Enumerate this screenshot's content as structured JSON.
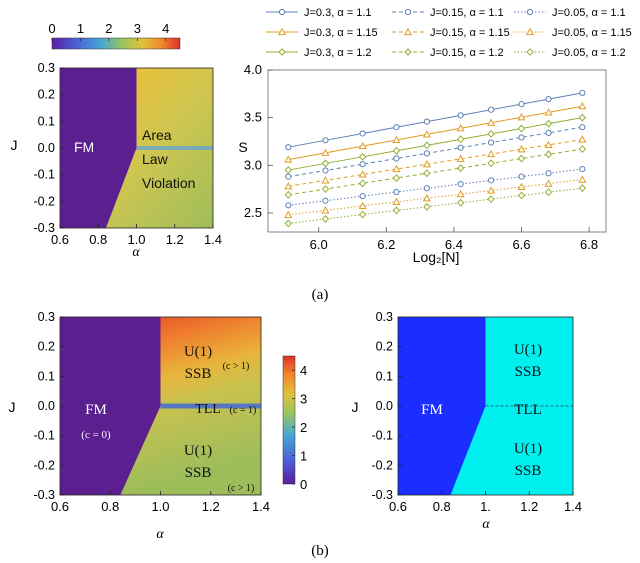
{
  "figure": {
    "label_a": "(a)",
    "label_b": "(b)"
  },
  "chart_data": [
    {
      "id": "a-left",
      "type": "heatmap",
      "title": "",
      "xlabel": "α",
      "ylabel": "J",
      "xlim": [
        0.6,
        1.4
      ],
      "ylim": [
        -0.3,
        0.3
      ],
      "xticks": [
        "0.6",
        "0.8",
        "1.0",
        "1.2",
        "1.4"
      ],
      "yticks": [
        "0.3",
        "0.2",
        "0.1",
        "0.0",
        "-0.1",
        "-0.2",
        "-0.3"
      ],
      "colorbar": {
        "min": 0,
        "max": 4.5,
        "ticks": [
          "0",
          "1",
          "2",
          "3",
          "4"
        ],
        "orientation": "horizontal"
      },
      "regions": [
        {
          "label": "FM",
          "value": 0
        },
        {
          "label": "Area",
          "value": 3.5
        },
        {
          "label": "Law",
          "value": 3.5
        },
        {
          "label": "Violation",
          "value": 3.5
        }
      ],
      "boundary": {
        "alpha_at_J_min": 0.84,
        "alpha_at_J_zero": 1.0
      }
    },
    {
      "id": "a-right",
      "type": "line",
      "xlabel": "Log₂[N]",
      "ylabel": "S",
      "xlim": [
        5.85,
        6.85
      ],
      "ylim": [
        2.3,
        4.0
      ],
      "xticks": [
        "6.0",
        "6.2",
        "6.4",
        "6.6",
        "6.8"
      ],
      "yticks": [
        "4.0",
        "3.5",
        "3.0",
        "2.5"
      ],
      "x": [
        5.91,
        6.02,
        6.13,
        6.23,
        6.32,
        6.42,
        6.51,
        6.6,
        6.68,
        6.78
      ],
      "series": [
        {
          "name": "J=0.3, α = 1.1",
          "color": "#5e81b5",
          "marker": "circle",
          "dash": "solid",
          "start": 3.19,
          "end": 3.76
        },
        {
          "name": "J=0.3, α = 1.15",
          "color": "#e19c24",
          "marker": "triangle",
          "dash": "solid",
          "start": 3.06,
          "end": 3.62
        },
        {
          "name": "J=0.3, α = 1.2",
          "color": "#8fb032",
          "marker": "diamond",
          "dash": "solid",
          "start": 2.95,
          "end": 3.5
        },
        {
          "name": "J=0.15, α = 1.1",
          "color": "#5e81b5",
          "marker": "circle",
          "dash": "dashed",
          "start": 2.88,
          "end": 3.4
        },
        {
          "name": "J=0.15, α = 1.15",
          "color": "#e19c24",
          "marker": "triangle",
          "dash": "dashed",
          "start": 2.78,
          "end": 3.27
        },
        {
          "name": "J=0.15, α = 1.2",
          "color": "#8fb032",
          "marker": "diamond",
          "dash": "dashed",
          "start": 2.69,
          "end": 3.17
        },
        {
          "name": "J=0.05, α = 1.1",
          "color": "#5e81b5",
          "marker": "circle",
          "dash": "dotted",
          "start": 2.58,
          "end": 2.96
        },
        {
          "name": "J=0.05, α = 1.15",
          "color": "#e19c24",
          "marker": "triangle",
          "dash": "dotted",
          "start": 2.48,
          "end": 2.85
        },
        {
          "name": "J=0.05, α = 1.2",
          "color": "#8fb032",
          "marker": "diamond",
          "dash": "dotted",
          "start": 2.39,
          "end": 2.76
        }
      ]
    },
    {
      "id": "b-left",
      "type": "heatmap",
      "xlabel": "α",
      "ylabel": "J",
      "xlim": [
        0.6,
        1.4
      ],
      "ylim": [
        -0.3,
        0.3
      ],
      "xticks": [
        "0.6",
        "0.8",
        "1.0",
        "1.2",
        "1.4"
      ],
      "yticks": [
        "0.3",
        "0.2",
        "0.1",
        "0.0",
        "-0.1",
        "-0.2",
        "-0.3"
      ],
      "colorbar": {
        "min": 0,
        "max": 4.5,
        "ticks": [
          "4",
          "3",
          "2",
          "1",
          "0"
        ],
        "orientation": "vertical"
      },
      "regions": [
        {
          "label": "FM",
          "sub": "(c = 0)",
          "value": 0
        },
        {
          "label": "U(1)",
          "label2": "SSB",
          "sub": "(c > 1)",
          "value": 4.2
        },
        {
          "label": "TLL",
          "sub": "(c = 1)",
          "value": 1.5
        },
        {
          "label": "U(1)",
          "label2": "SSB",
          "sub": "(c > 1)",
          "value": 3.0
        }
      ],
      "boundary": {
        "alpha_at_J_min": 0.84,
        "alpha_at_J_zero": 1.0
      }
    },
    {
      "id": "b-right",
      "type": "heatmap",
      "xlabel": "α",
      "ylabel": "J",
      "xlim": [
        0.6,
        1.4
      ],
      "ylim": [
        -0.3,
        0.3
      ],
      "xticks": [
        "0.6",
        "0.8",
        "1.",
        "1.2",
        "1.4"
      ],
      "yticks": [
        "0.3",
        "0.2",
        "0.1",
        "0.0",
        "-0.1",
        "-0.2",
        "-0.3"
      ],
      "colors": {
        "fm": "#1a2fff",
        "ssb": "#00f0f0"
      },
      "regions": [
        {
          "label": "FM"
        },
        {
          "label": "U(1)",
          "label2": "SSB"
        },
        {
          "label": "TLL"
        },
        {
          "label": "U(1)",
          "label2": "SSB"
        }
      ],
      "boundary": {
        "alpha_at_J_min": 0.84,
        "alpha_at_J_zero": 1.0
      }
    }
  ]
}
